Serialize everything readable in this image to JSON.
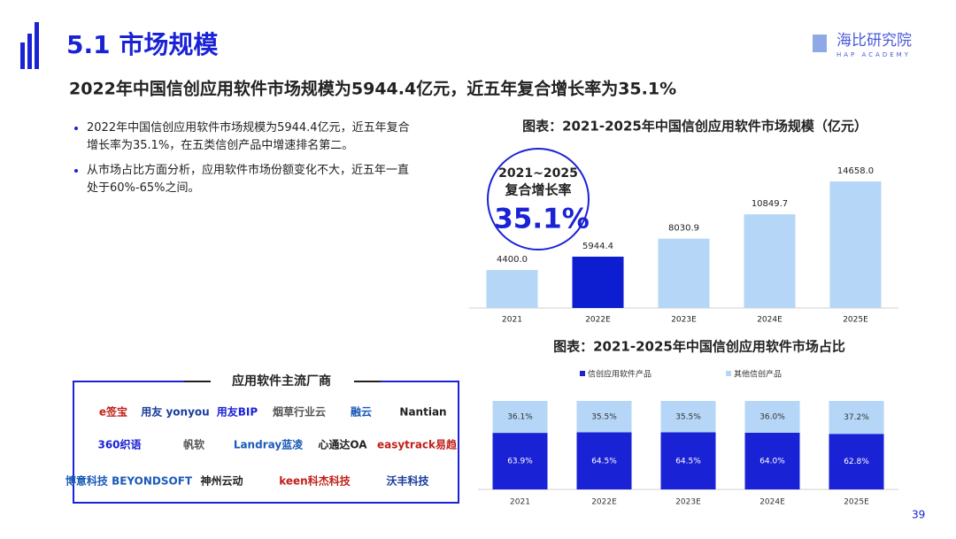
{
  "header": {
    "title": "5.1 市场规模",
    "logo": "海比研究院",
    "logo_sub": "HAP ACADEMY"
  },
  "headline": "2022年中国信创应用软件市场规模为5944.4亿元，近五年复合增长率为35.1%",
  "bullets": [
    "2022年中国信创应用软件市场规模为5944.4亿元，近五年复合增长率为35.1%，在五类信创产品中增速排名第二。",
    "从市场占比方面分析，应用软件市场份额变化不大，近五年一直处于60%-65%之间。"
  ],
  "callout": {
    "period": "2021~2025",
    "label": "复合增长率",
    "value": "35.1%"
  },
  "vendors": {
    "title": "应用软件主流厂商",
    "names": [
      [
        "e签宝",
        "用友 yonyou",
        "用友BIP",
        "烟草行业云",
        "融云",
        "Nantian"
      ],
      [
        "360织语",
        "帆软",
        "Landray蓝凌",
        "心通达OA",
        "easytrack易趋"
      ],
      [
        "博意科技 BEYONDSOFT",
        "神州云动",
        "keen科杰科技",
        "沃丰科技"
      ]
    ]
  },
  "page_number": "39",
  "chart_data": [
    {
      "type": "bar",
      "title": "图表：2021-2025年中国信创应用软件市场规模（亿元）",
      "categories": [
        "2021",
        "2022E",
        "2023E",
        "2024E",
        "2025E"
      ],
      "values": [
        4400.0,
        5944.4,
        8030.9,
        10849.7,
        14658.0
      ],
      "value_labels": [
        "4400.0",
        "5944.4",
        "8030.9",
        "10849.7",
        "14658.0"
      ],
      "colors": [
        "#b5d6f6",
        "#0d1ed0",
        "#b5d6f6",
        "#b5d6f6",
        "#b5d6f6"
      ]
    },
    {
      "type": "stacked_bar",
      "title": "图表：2021-2025年中国信创应用软件市场占比",
      "categories": [
        "2021",
        "2022E",
        "2023E",
        "2024E",
        "2025E"
      ],
      "series": [
        {
          "name": "信创应用软件产品",
          "color": "#1a22d6",
          "values": [
            63.9,
            64.5,
            64.5,
            64.0,
            62.8
          ],
          "value_labels": [
            "63.9%",
            "64.5%",
            "64.5%",
            "64.0%",
            "62.8%"
          ]
        },
        {
          "name": "其他信创产品",
          "color": "#b5d6f6",
          "values": [
            36.1,
            35.5,
            35.5,
            36.0,
            37.2
          ],
          "value_labels": [
            "36.1%",
            "35.5%",
            "35.5%",
            "36.0%",
            "37.2%"
          ]
        }
      ]
    }
  ]
}
